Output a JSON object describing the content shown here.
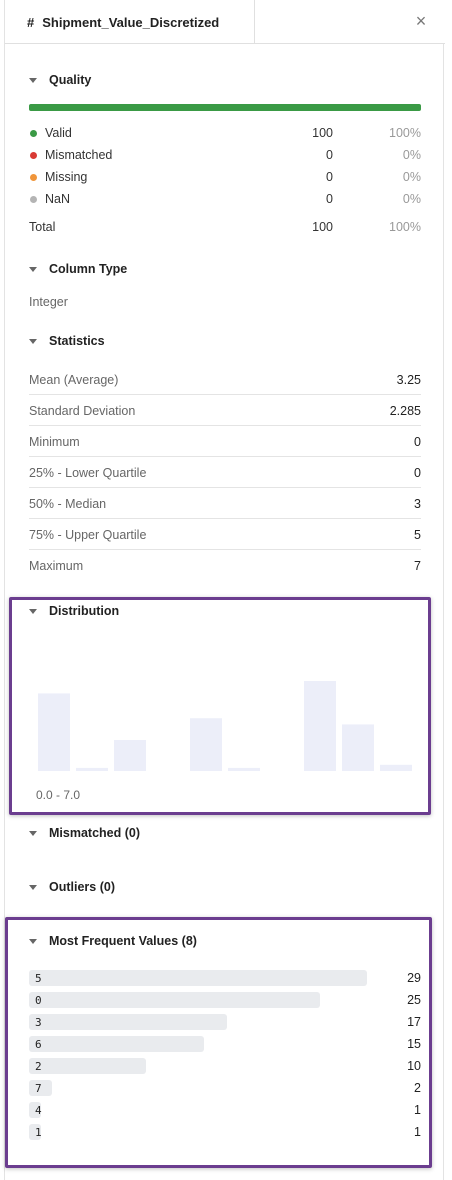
{
  "tab": {
    "type_icon": "#",
    "title": "Shipment_Value_Discretized",
    "close_icon": "×"
  },
  "quality": {
    "header": "Quality",
    "bar_color": "#3a9a45",
    "rows": [
      {
        "label": "Valid",
        "count": "100",
        "percent": "100%",
        "color": "#3a9a45"
      },
      {
        "label": "Mismatched",
        "count": "0",
        "percent": "0%",
        "color": "#d93a34"
      },
      {
        "label": "Missing",
        "count": "0",
        "percent": "0%",
        "color": "#f0953a"
      },
      {
        "label": "NaN",
        "count": "0",
        "percent": "0%",
        "color": "#b4b4b4"
      }
    ],
    "total": {
      "label": "Total",
      "count": "100",
      "percent": "100%"
    }
  },
  "column_type": {
    "header": "Column Type",
    "value": "Integer"
  },
  "statistics": {
    "header": "Statistics",
    "rows": [
      {
        "label": "Mean (Average)",
        "value": "3.25"
      },
      {
        "label": "Standard Deviation",
        "value": "2.285"
      },
      {
        "label": "Minimum",
        "value": "0"
      },
      {
        "label": "25% - Lower Quartile",
        "value": "0"
      },
      {
        "label": "50% - Median",
        "value": "3"
      },
      {
        "label": "75% - Upper Quartile",
        "value": "5"
      },
      {
        "label": "Maximum",
        "value": "7"
      }
    ]
  },
  "distribution": {
    "header": "Distribution",
    "range_label": "0.0 - 7.0",
    "bar_color": "#eceef9"
  },
  "chart_data": {
    "type": "bar",
    "x_range": [
      0,
      7
    ],
    "values": [
      25,
      1,
      10,
      0,
      17,
      1,
      0,
      29,
      15,
      2
    ],
    "ylim": [
      0,
      29
    ]
  },
  "mismatched": {
    "header": "Mismatched (0)"
  },
  "outliers": {
    "header": "Outliers (0)"
  },
  "most_frequent": {
    "header": "Most Frequent Values (8)",
    "max": 29,
    "items": [
      {
        "value": "5",
        "count": 29
      },
      {
        "value": "0",
        "count": 25
      },
      {
        "value": "3",
        "count": 17
      },
      {
        "value": "6",
        "count": 15
      },
      {
        "value": "2",
        "count": 10
      },
      {
        "value": "7",
        "count": 2
      },
      {
        "value": "4",
        "count": 1
      },
      {
        "value": "1",
        "count": 1
      }
    ]
  },
  "highlight_color": "#6b3d8f"
}
